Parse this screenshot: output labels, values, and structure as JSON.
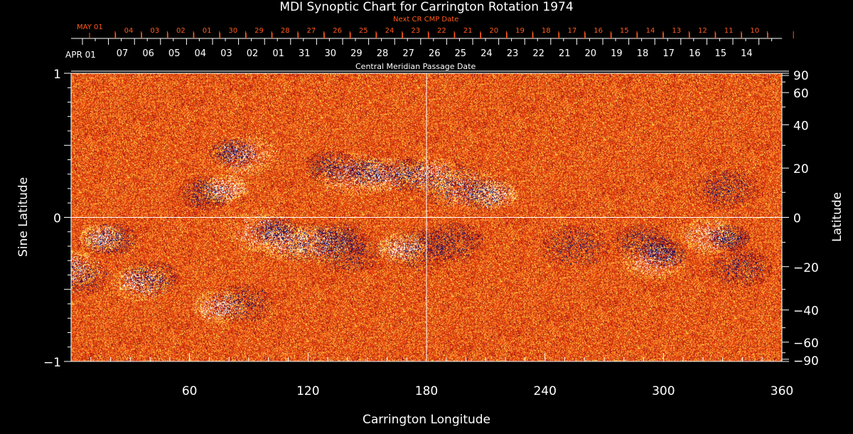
{
  "chart_data": {
    "type": "heatmap",
    "title": "MDI Synoptic Chart for Carrington Rotation 1974",
    "xlabel": "Carrington Longitude",
    "ylabel_left": "Sine Latitude",
    "ylabel_right": "Latitude",
    "xlim": [
      0,
      360
    ],
    "ylim": [
      -1,
      1
    ],
    "x_ticks": [
      "60",
      "120",
      "180",
      "240",
      "300",
      "360"
    ],
    "x_tick_values": [
      60,
      120,
      180,
      240,
      300,
      360
    ],
    "y_left_ticks": [
      "1",
      "0",
      "−1"
    ],
    "y_left_tick_values": [
      1,
      0,
      -1
    ],
    "y_right_ticks": [
      "90",
      "60",
      "40",
      "20",
      "0",
      "−20",
      "−40",
      "−60",
      "−90"
    ],
    "y_right_tick_values": [
      90,
      60,
      40,
      20,
      0,
      -20,
      -40,
      -60,
      -90
    ],
    "top_axis": {
      "label": "Central Meridian Passage Date",
      "month_label": "APR 01",
      "dates": [
        "07",
        "06",
        "05",
        "04",
        "03",
        "02",
        "01",
        "31",
        "30",
        "29",
        "28",
        "27",
        "26",
        "25",
        "24",
        "23",
        "22",
        "21",
        "20",
        "19",
        "18",
        "17",
        "16",
        "15",
        "14"
      ]
    },
    "next_axis": {
      "label": "Next CR CMP Date",
      "month_label": "MAY 01",
      "dates": [
        "04",
        "03",
        "02",
        "01",
        "30",
        "29",
        "28",
        "27",
        "26",
        "25",
        "24",
        "23",
        "22",
        "21",
        "20",
        "19",
        "18",
        "17",
        "16",
        "15",
        "14",
        "13",
        "12",
        "11",
        "10"
      ]
    },
    "colors": {
      "background_field": "#e84a12",
      "positive": "#ffffff",
      "negative": "#10106a",
      "speckle": "#ffd23a",
      "grid": "#ffffff"
    },
    "regions": [
      [
        68,
        0.17,
        -1
      ],
      [
        78,
        0.2,
        1
      ],
      [
        82,
        0.45,
        -1
      ],
      [
        88,
        0.43,
        1
      ],
      [
        132,
        0.35,
        -1
      ],
      [
        142,
        0.3,
        1
      ],
      [
        150,
        0.32,
        -1
      ],
      [
        158,
        0.3,
        1
      ],
      [
        170,
        0.3,
        -1
      ],
      [
        182,
        0.3,
        1
      ],
      [
        192,
        0.23,
        -1
      ],
      [
        200,
        0.2,
        1
      ],
      [
        209,
        0.17,
        -1
      ],
      [
        214,
        0.16,
        1
      ],
      [
        332,
        0.2,
        -1
      ],
      [
        20,
        -0.15,
        -1
      ],
      [
        15,
        -0.14,
        1
      ],
      [
        3,
        -0.4,
        -1
      ],
      [
        0,
        -0.35,
        1
      ],
      [
        40,
        -0.42,
        -1
      ],
      [
        35,
        -0.45,
        1
      ],
      [
        86,
        -0.6,
        -1
      ],
      [
        75,
        -0.62,
        1
      ],
      [
        103,
        -0.09,
        -1
      ],
      [
        96,
        -0.1,
        1
      ],
      [
        118,
        -0.17,
        -1
      ],
      [
        110,
        -0.17,
        1
      ],
      [
        135,
        -0.15,
        -1
      ],
      [
        125,
        -0.18,
        1
      ],
      [
        140,
        -0.24,
        -1
      ],
      [
        177,
        -0.22,
        -1
      ],
      [
        167,
        -0.21,
        1
      ],
      [
        193,
        -0.17,
        -1
      ],
      [
        255,
        -0.2,
        -1
      ],
      [
        290,
        -0.17,
        -1
      ],
      [
        300,
        -0.25,
        -1
      ],
      [
        295,
        -0.3,
        1
      ],
      [
        333,
        -0.14,
        -1
      ],
      [
        323,
        -0.13,
        1
      ],
      [
        339,
        -0.35,
        -1
      ]
    ]
  }
}
